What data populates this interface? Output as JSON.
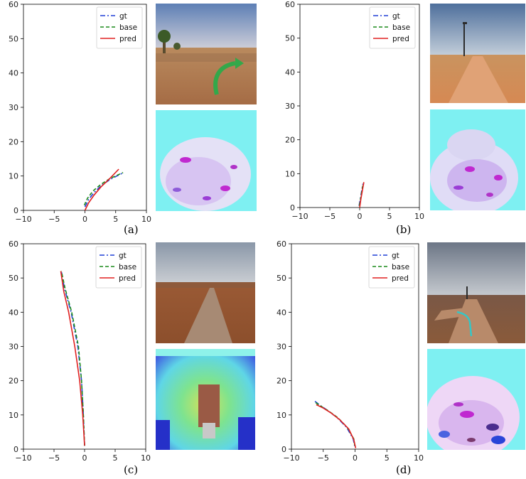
{
  "chart_data": [
    {
      "type": "line",
      "panel_label": "(a)",
      "xlim": [
        -10,
        10
      ],
      "ylim": [
        0,
        60
      ],
      "xticks": [
        -10,
        -5,
        0,
        5,
        10
      ],
      "yticks": [
        0,
        10,
        20,
        30,
        40,
        50,
        60
      ],
      "legend": {
        "placement": "top-right",
        "entries": [
          "gt",
          "base",
          "pred"
        ]
      },
      "series": [
        {
          "name": "gt",
          "color": "#1f3fd6",
          "style": "dashdot",
          "points": [
            [
              0,
              1
            ],
            [
              0.6,
              3.2
            ],
            [
              1.6,
              5.4
            ],
            [
              2.8,
              7.4
            ],
            [
              4.2,
              9.1
            ],
            [
              6.3,
              11.0
            ]
          ]
        },
        {
          "name": "base",
          "color": "#1a8a1a",
          "style": "dashed",
          "points": [
            [
              -0.1,
              1.5
            ],
            [
              0.4,
              3.5
            ],
            [
              1.3,
              5.6
            ],
            [
              2.6,
              7.6
            ],
            [
              4.1,
              9.3
            ],
            [
              6.2,
              11.0
            ]
          ]
        },
        {
          "name": "pred",
          "color": "#e02020",
          "style": "solid",
          "points": [
            [
              0,
              0
            ],
            [
              0.6,
              2.2
            ],
            [
              1.5,
              4.5
            ],
            [
              2.6,
              6.8
            ],
            [
              4.0,
              9.2
            ],
            [
              5.5,
              12.0
            ]
          ]
        }
      ]
    },
    {
      "type": "line",
      "panel_label": "(b)",
      "xlim": [
        -10,
        10
      ],
      "ylim": [
        0,
        60
      ],
      "xticks": [
        -10,
        -5,
        0,
        5,
        10
      ],
      "yticks": [
        0,
        10,
        20,
        30,
        40,
        50,
        60
      ],
      "legend": {
        "placement": "top-right",
        "entries": [
          "gt",
          "base",
          "pred"
        ]
      },
      "series": [
        {
          "name": "gt",
          "color": "#1f3fd6",
          "style": "dashdot",
          "points": [
            [
              -0.1,
              0.5
            ],
            [
              0.1,
              2.5
            ],
            [
              0.3,
              4.5
            ],
            [
              0.55,
              7.0
            ]
          ]
        },
        {
          "name": "base",
          "color": "#1a8a1a",
          "style": "dashed",
          "points": [
            [
              -0.05,
              0.5
            ],
            [
              0.15,
              2.6
            ],
            [
              0.35,
              4.6
            ],
            [
              0.6,
              7.2
            ]
          ]
        },
        {
          "name": "pred",
          "color": "#e02020",
          "style": "solid",
          "points": [
            [
              0,
              0
            ],
            [
              0.2,
              2.5
            ],
            [
              0.45,
              5.0
            ],
            [
              0.7,
              7.5
            ]
          ]
        }
      ]
    },
    {
      "type": "line",
      "panel_label": "(c)",
      "xlim": [
        -10,
        10
      ],
      "ylim": [
        0,
        60
      ],
      "xticks": [
        -10,
        -5,
        0,
        5,
        10
      ],
      "yticks": [
        0,
        10,
        20,
        30,
        40,
        50,
        60
      ],
      "legend": {
        "placement": "top-right",
        "entries": [
          "gt",
          "base",
          "pred"
        ]
      },
      "series": [
        {
          "name": "gt",
          "color": "#1f3fd6",
          "style": "dashdot",
          "points": [
            [
              0,
              1
            ],
            [
              -0.2,
              10
            ],
            [
              -0.5,
              20
            ],
            [
              -1.1,
              30
            ],
            [
              -2.2,
              40
            ],
            [
              -3.3,
              47
            ],
            [
              -3.8,
              52
            ]
          ]
        },
        {
          "name": "base",
          "color": "#1a8a1a",
          "style": "dashed",
          "points": [
            [
              0,
              1
            ],
            [
              -0.2,
              10
            ],
            [
              -0.5,
              20
            ],
            [
              -1.0,
              30
            ],
            [
              -2.1,
              40
            ],
            [
              -3.2,
              47
            ],
            [
              -3.8,
              52
            ]
          ]
        },
        {
          "name": "pred",
          "color": "#e02020",
          "style": "solid",
          "points": [
            [
              0,
              1
            ],
            [
              -0.3,
              10
            ],
            [
              -0.8,
              20
            ],
            [
              -1.6,
              30
            ],
            [
              -2.6,
              40
            ],
            [
              -3.4,
              46
            ],
            [
              -3.9,
              52
            ]
          ]
        }
      ]
    },
    {
      "type": "line",
      "panel_label": "(d)",
      "xlim": [
        -10,
        10
      ],
      "ylim": [
        0,
        60
      ],
      "xticks": [
        -10,
        -5,
        0,
        5,
        10
      ],
      "yticks": [
        0,
        10,
        20,
        30,
        40,
        50,
        60
      ],
      "legend": {
        "placement": "top-right",
        "entries": [
          "gt",
          "base",
          "pred"
        ]
      },
      "series": [
        {
          "name": "gt",
          "color": "#1f3fd6",
          "style": "dashdot",
          "points": [
            [
              -6.3,
              14
            ],
            [
              -5.5,
              12.8
            ],
            [
              -4.3,
              11.3
            ],
            [
              -2.8,
              9.2
            ],
            [
              -1.3,
              6.3
            ],
            [
              -0.3,
              3.0
            ],
            [
              0,
              0.5
            ]
          ]
        },
        {
          "name": "base",
          "color": "#1a8a1a",
          "style": "dashed",
          "points": [
            [
              -6.2,
              13.6
            ],
            [
              -5.4,
              12.6
            ],
            [
              -4.2,
              11.2
            ],
            [
              -2.7,
              9.2
            ],
            [
              -1.2,
              6.3
            ],
            [
              -0.2,
              3.0
            ],
            [
              0,
              0.5
            ]
          ]
        },
        {
          "name": "pred",
          "color": "#e02020",
          "style": "solid",
          "points": [
            [
              -6.1,
              13.0
            ],
            [
              -5.0,
              12.0
            ],
            [
              -3.8,
              10.6
            ],
            [
              -2.4,
              8.6
            ],
            [
              -1.0,
              5.9
            ],
            [
              -0.2,
              2.8
            ],
            [
              0.1,
              0.3
            ]
          ]
        }
      ]
    }
  ],
  "images": [
    {
      "camera": "road-scene-curve-arrow",
      "flow": "optical-flow-map"
    },
    {
      "camera": "road-scene-straight-pole",
      "flow": "optical-flow-map"
    },
    {
      "camera": "road-scene-long-road",
      "flow": "optical-flow-map"
    },
    {
      "camera": "road-scene-fork-path",
      "flow": "optical-flow-map"
    }
  ]
}
